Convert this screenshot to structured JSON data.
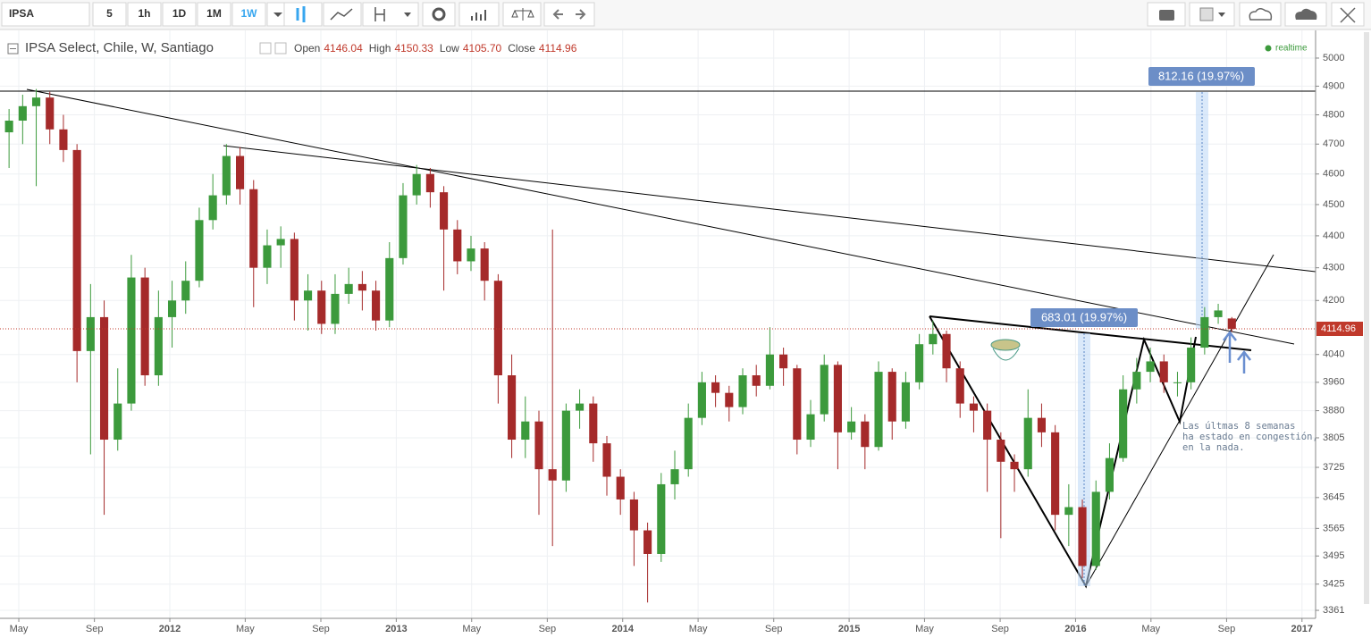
{
  "toolbar": {
    "symbol": "IPSA",
    "intervals": [
      "5",
      "1h",
      "1D",
      "1M",
      "1W"
    ],
    "active_interval": "1W"
  },
  "header": {
    "title": "IPSA Select, Chile, W, Santiago",
    "legend": [
      {
        "name": "Open",
        "value": "4146.04"
      },
      {
        "name": "High",
        "value": "4150.33"
      },
      {
        "name": "Low",
        "value": "4105.70"
      },
      {
        "name": "Close",
        "value": "4114.96"
      }
    ],
    "status": "realtime"
  },
  "chart_data": {
    "type": "candlestick",
    "log_scale": true,
    "grid": true,
    "up_color": "#3c9a3c",
    "down_color": "#a52a2a",
    "x": [
      2011.29,
      2011.35,
      2011.41,
      2011.47,
      2011.53,
      2011.59,
      2011.65,
      2011.71,
      2011.77,
      2011.83,
      2011.89,
      2011.95,
      2012.01,
      2012.07,
      2012.13,
      2012.19,
      2012.25,
      2012.31,
      2012.37,
      2012.43,
      2012.49,
      2012.55,
      2012.61,
      2012.67,
      2012.73,
      2012.79,
      2012.85,
      2012.91,
      2012.97,
      2013.03,
      2013.09,
      2013.15,
      2013.21,
      2013.27,
      2013.33,
      2013.39,
      2013.45,
      2013.51,
      2013.57,
      2013.63,
      2013.69,
      2013.75,
      2013.81,
      2013.87,
      2013.93,
      2013.99,
      2014.05,
      2014.11,
      2014.17,
      2014.23,
      2014.29,
      2014.35,
      2014.41,
      2014.47,
      2014.53,
      2014.59,
      2014.65,
      2014.71,
      2014.77,
      2014.83,
      2014.89,
      2014.95,
      2015.01,
      2015.07,
      2015.13,
      2015.19,
      2015.25,
      2015.31,
      2015.37,
      2015.43,
      2015.49,
      2015.55,
      2015.61,
      2015.67,
      2015.73,
      2015.79,
      2015.85,
      2015.91,
      2015.97,
      2016.03,
      2016.09,
      2016.15,
      2016.21,
      2016.27,
      2016.33,
      2016.39,
      2016.45,
      2016.51,
      2016.57,
      2016.63,
      2016.69
    ],
    "open": [
      4740,
      4780,
      4830,
      4860,
      4750,
      4680,
      4050,
      4150,
      3800,
      3900,
      4270,
      3980,
      4150,
      4200,
      4260,
      4450,
      4530,
      4660,
      4550,
      4300,
      4370,
      4390,
      4200,
      4230,
      4130,
      4220,
      4250,
      4230,
      4140,
      4330,
      4530,
      4600,
      4540,
      4420,
      4320,
      4360,
      4260,
      3980,
      3800,
      3850,
      3720,
      3690,
      3880,
      3900,
      3790,
      3700,
      3640,
      3560,
      3500,
      3680,
      3720,
      3860,
      3960,
      3930,
      3890,
      3980,
      3950,
      4040,
      4000,
      3800,
      3870,
      4010,
      3820,
      3850,
      3780,
      3990,
      3850,
      3960,
      4070,
      4100,
      4000,
      3900,
      3880,
      3800,
      3740,
      3720,
      3860,
      3820,
      3600,
      3620,
      3470,
      3660,
      3750,
      3940,
      3990,
      4020,
      3960,
      3960,
      4060,
      4150,
      4146.04
    ],
    "high": [
      4820,
      4870,
      4890,
      4880,
      4800,
      4700,
      4250,
      4200,
      4000,
      4340,
      4300,
      4230,
      4260,
      4320,
      4490,
      4600,
      4700,
      4690,
      4580,
      4420,
      4430,
      4410,
      4280,
      4260,
      4280,
      4300,
      4290,
      4260,
      4380,
      4570,
      4630,
      4620,
      4560,
      4450,
      4400,
      4380,
      4280,
      4040,
      3920,
      3880,
      4420,
      3900,
      3940,
      3920,
      3810,
      3720,
      3660,
      3580,
      3710,
      3770,
      3900,
      3990,
      3980,
      3950,
      4000,
      4010,
      4120,
      4060,
      4010,
      3910,
      4040,
      4020,
      3890,
      3870,
      4020,
      4000,
      3990,
      4100,
      4140,
      4110,
      4020,
      3920,
      3900,
      3820,
      3760,
      3940,
      3900,
      3840,
      3680,
      3640,
      3690,
      3790,
      3980,
      4030,
      4060,
      4040,
      3990,
      4090,
      4180,
      4190,
      4150.33
    ],
    "low": [
      4620,
      4700,
      4560,
      4700,
      4640,
      3960,
      3760,
      3600,
      3770,
      3880,
      3950,
      3950,
      4060,
      4160,
      4240,
      4420,
      4500,
      4500,
      4180,
      4250,
      4300,
      4140,
      4110,
      4100,
      4100,
      4190,
      4170,
      4110,
      4120,
      4310,
      4500,
      4490,
      4230,
      4280,
      4290,
      4200,
      3900,
      3750,
      3750,
      3600,
      3520,
      3660,
      3830,
      3740,
      3650,
      3600,
      3470,
      3380,
      3480,
      3640,
      3700,
      3840,
      3890,
      3850,
      3870,
      3920,
      3940,
      3950,
      3760,
      3780,
      3850,
      3720,
      3800,
      3720,
      3770,
      3800,
      3830,
      3940,
      4040,
      3960,
      3860,
      3820,
      3660,
      3540,
      3660,
      3700,
      3780,
      3560,
      3520,
      3440,
      3460,
      3640,
      3740,
      3900,
      3960,
      3930,
      3920,
      3940,
      4040,
      4130,
      4105.7
    ],
    "close": [
      4780,
      4830,
      4860,
      4750,
      4680,
      4050,
      4150,
      3800,
      3900,
      4270,
      3980,
      4150,
      4200,
      4260,
      4450,
      4530,
      4660,
      4550,
      4300,
      4370,
      4390,
      4200,
      4230,
      4130,
      4220,
      4250,
      4230,
      4140,
      4330,
      4530,
      4600,
      4540,
      4420,
      4320,
      4360,
      4260,
      3980,
      3800,
      3850,
      3720,
      3690,
      3880,
      3900,
      3790,
      3700,
      3640,
      3560,
      3500,
      3680,
      3720,
      3860,
      3960,
      3930,
      3890,
      3980,
      3950,
      4040,
      4000,
      3800,
      3870,
      4010,
      3820,
      3850,
      3780,
      3990,
      3850,
      3960,
      4070,
      4100,
      4000,
      3900,
      3880,
      3800,
      3740,
      3720,
      3860,
      3820,
      3600,
      3620,
      3470,
      3660,
      3750,
      3940,
      3990,
      4020,
      3960,
      3960,
      4060,
      4150,
      4170,
      4114.96
    ],
    "xlim": [
      2011.25,
      2017.06
    ],
    "xticks": [
      {
        "value": 2011.333,
        "label": "May"
      },
      {
        "value": 2011.667,
        "label": "Sep"
      },
      2012,
      {
        "value": 2012.333,
        "label": "May"
      },
      {
        "value": 2012.667,
        "label": "Sep"
      },
      2013,
      {
        "value": 2013.333,
        "label": "May"
      },
      {
        "value": 2013.667,
        "label": "Sep"
      },
      2014,
      {
        "value": 2014.333,
        "label": "May"
      },
      {
        "value": 2014.667,
        "label": "Sep"
      },
      2015,
      {
        "value": 2015.333,
        "label": "May"
      },
      {
        "value": 2015.667,
        "label": "Sep"
      },
      2016,
      {
        "value": 2016.333,
        "label": "May"
      },
      {
        "value": 2016.667,
        "label": "Sep"
      },
      2017
    ],
    "ylim": [
      3346,
      5094
    ],
    "yticks": [
      5000,
      4900,
      4800,
      4700,
      4600,
      4500,
      4400,
      4300,
      4200,
      4040,
      3960,
      3880,
      3805,
      3725,
      3645,
      3565,
      3495,
      3425,
      3361
    ],
    "last_price_label": "4114.96",
    "annotations": {
      "measure_1": "812.16 (19.97%)",
      "measure_2": "683.01 (19.97%)",
      "note": [
        "Las últmas 8 semanas",
        "ha estado en congestión,",
        "en la nada."
      ]
    }
  }
}
